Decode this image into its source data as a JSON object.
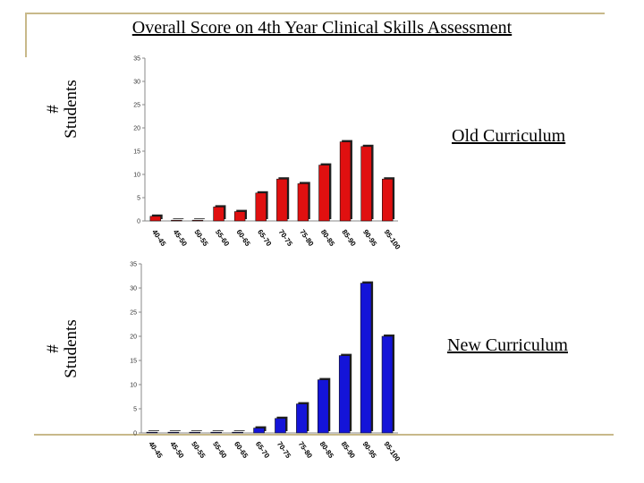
{
  "title": "Overall Score on 4th Year Clinical Skills Assessment",
  "colors": {
    "old": "#e01010",
    "new": "#1414d8",
    "frame": "#c8b98a"
  },
  "chart_data": [
    {
      "type": "bar",
      "label": "Old Curriculum",
      "ylabel_hash": "#",
      "ylabel_word": "Students",
      "categories": [
        "40-45",
        "45-50",
        "50-55",
        "55-60",
        "60-65",
        "65-70",
        "70-75",
        "75-80",
        "80-85",
        "85-90",
        "90-95",
        "95-100"
      ],
      "values": [
        1,
        0,
        0,
        3,
        2,
        6,
        9,
        8,
        12,
        17,
        16,
        9
      ],
      "ylim": [
        0,
        35
      ],
      "yticks": [
        0,
        5,
        10,
        15,
        20,
        25,
        30,
        35
      ],
      "grid": false
    },
    {
      "type": "bar",
      "label": "New Curriculum",
      "ylabel_hash": "#",
      "ylabel_word": "Students",
      "categories": [
        "40-45",
        "45-50",
        "50-55",
        "55-60",
        "60-65",
        "65-70",
        "70-75",
        "75-80",
        "80-85",
        "85-90",
        "90-95",
        "95-100"
      ],
      "values": [
        0,
        0,
        0,
        0,
        0,
        1,
        3,
        6,
        11,
        16,
        31,
        20
      ],
      "ylim": [
        0,
        35
      ],
      "yticks": [
        0,
        5,
        10,
        15,
        20,
        25,
        30,
        35
      ],
      "grid": false
    }
  ]
}
